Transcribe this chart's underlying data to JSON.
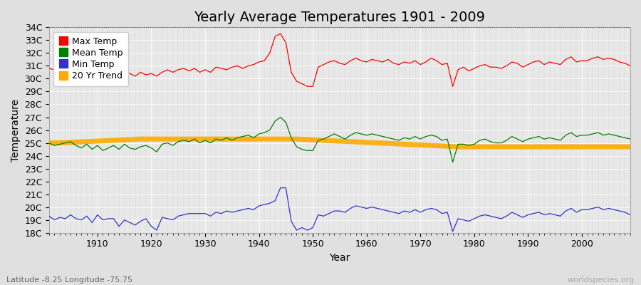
{
  "title": "Yearly Average Temperatures 1901 - 2009",
  "xlabel": "Year",
  "ylabel": "Temperature",
  "subtitle_left": "Latitude -8.25 Longitude -75.75",
  "subtitle_right": "worldspecies.org",
  "years": [
    1901,
    1902,
    1903,
    1904,
    1905,
    1906,
    1907,
    1908,
    1909,
    1910,
    1911,
    1912,
    1913,
    1914,
    1915,
    1916,
    1917,
    1918,
    1919,
    1920,
    1921,
    1922,
    1923,
    1924,
    1925,
    1926,
    1927,
    1928,
    1929,
    1930,
    1931,
    1932,
    1933,
    1934,
    1935,
    1936,
    1937,
    1938,
    1939,
    1940,
    1941,
    1942,
    1943,
    1944,
    1945,
    1946,
    1947,
    1948,
    1949,
    1950,
    1951,
    1952,
    1953,
    1954,
    1955,
    1956,
    1957,
    1958,
    1959,
    1960,
    1961,
    1962,
    1963,
    1964,
    1965,
    1966,
    1967,
    1968,
    1969,
    1970,
    1971,
    1972,
    1973,
    1974,
    1975,
    1976,
    1977,
    1978,
    1979,
    1980,
    1981,
    1982,
    1983,
    1984,
    1985,
    1986,
    1987,
    1988,
    1989,
    1990,
    1991,
    1992,
    1993,
    1994,
    1995,
    1996,
    1997,
    1998,
    1999,
    2000,
    2001,
    2002,
    2003,
    2004,
    2005,
    2006,
    2007,
    2008,
    2009
  ],
  "max_temp": [
    30.8,
    30.7,
    30.6,
    30.7,
    30.5,
    30.4,
    30.3,
    30.6,
    30.4,
    30.1,
    29.9,
    30.2,
    30.3,
    30.5,
    30.6,
    30.4,
    30.2,
    30.5,
    30.3,
    30.4,
    30.2,
    30.5,
    30.7,
    30.5,
    30.7,
    30.8,
    30.6,
    30.8,
    30.5,
    30.7,
    30.5,
    30.9,
    30.8,
    30.7,
    30.9,
    31.0,
    30.8,
    31.0,
    31.1,
    31.3,
    31.4,
    32.0,
    33.3,
    33.5,
    32.8,
    30.5,
    29.8,
    29.6,
    29.4,
    29.4,
    30.9,
    31.1,
    31.3,
    31.4,
    31.2,
    31.1,
    31.4,
    31.6,
    31.4,
    31.3,
    31.5,
    31.4,
    31.3,
    31.5,
    31.2,
    31.1,
    31.3,
    31.2,
    31.4,
    31.1,
    31.3,
    31.6,
    31.4,
    31.1,
    31.2,
    29.4,
    30.7,
    30.9,
    30.6,
    30.8,
    31.0,
    31.1,
    30.9,
    30.9,
    30.8,
    31.0,
    31.3,
    31.2,
    30.9,
    31.1,
    31.3,
    31.4,
    31.1,
    31.3,
    31.2,
    31.1,
    31.5,
    31.7,
    31.3,
    31.4,
    31.4,
    31.6,
    31.7,
    31.5,
    31.6,
    31.5,
    31.3,
    31.2,
    31.0
  ],
  "mean_temp": [
    25.0,
    24.8,
    24.9,
    25.0,
    25.1,
    24.8,
    24.6,
    24.9,
    24.5,
    24.8,
    24.4,
    24.6,
    24.8,
    24.5,
    24.9,
    24.6,
    24.5,
    24.7,
    24.8,
    24.6,
    24.3,
    24.9,
    25.0,
    24.8,
    25.1,
    25.2,
    25.1,
    25.3,
    25.0,
    25.2,
    25.0,
    25.3,
    25.2,
    25.4,
    25.2,
    25.4,
    25.5,
    25.6,
    25.4,
    25.7,
    25.8,
    26.0,
    26.7,
    27.0,
    26.6,
    25.4,
    24.7,
    24.5,
    24.4,
    24.4,
    25.2,
    25.3,
    25.5,
    25.7,
    25.5,
    25.3,
    25.6,
    25.8,
    25.7,
    25.6,
    25.7,
    25.6,
    25.5,
    25.4,
    25.3,
    25.2,
    25.4,
    25.3,
    25.5,
    25.3,
    25.5,
    25.6,
    25.5,
    25.2,
    25.3,
    23.5,
    24.9,
    24.9,
    24.8,
    24.9,
    25.2,
    25.3,
    25.1,
    25.0,
    25.0,
    25.2,
    25.5,
    25.3,
    25.1,
    25.3,
    25.4,
    25.5,
    25.3,
    25.4,
    25.3,
    25.2,
    25.6,
    25.8,
    25.5,
    25.6,
    25.6,
    25.7,
    25.8,
    25.6,
    25.7,
    25.6,
    25.5,
    25.4,
    25.3
  ],
  "min_temp": [
    19.3,
    19.0,
    19.2,
    19.1,
    19.4,
    19.1,
    19.0,
    19.3,
    18.8,
    19.4,
    19.0,
    19.1,
    19.1,
    18.5,
    19.0,
    18.8,
    18.6,
    18.9,
    19.1,
    18.5,
    18.2,
    19.2,
    19.1,
    19.0,
    19.3,
    19.4,
    19.5,
    19.5,
    19.5,
    19.5,
    19.3,
    19.6,
    19.5,
    19.7,
    19.6,
    19.7,
    19.8,
    19.9,
    19.8,
    20.1,
    20.2,
    20.3,
    20.5,
    21.5,
    21.5,
    18.9,
    18.2,
    18.4,
    18.2,
    18.4,
    19.4,
    19.3,
    19.5,
    19.7,
    19.7,
    19.6,
    19.9,
    20.1,
    20.0,
    19.9,
    20.0,
    19.9,
    19.8,
    19.7,
    19.6,
    19.5,
    19.7,
    19.6,
    19.8,
    19.6,
    19.8,
    19.9,
    19.8,
    19.5,
    19.6,
    18.1,
    19.1,
    19.0,
    18.9,
    19.1,
    19.3,
    19.4,
    19.3,
    19.2,
    19.1,
    19.3,
    19.6,
    19.4,
    19.2,
    19.4,
    19.5,
    19.6,
    19.4,
    19.5,
    19.4,
    19.3,
    19.7,
    19.9,
    19.6,
    19.8,
    19.8,
    19.9,
    20.0,
    19.8,
    19.9,
    19.8,
    19.7,
    19.6,
    19.4
  ],
  "trend": [
    25.0,
    25.0,
    25.0,
    25.02,
    25.04,
    25.06,
    25.08,
    25.1,
    25.12,
    25.14,
    25.16,
    25.18,
    25.2,
    25.22,
    25.24,
    25.26,
    25.28,
    25.3,
    25.3,
    25.3,
    25.3,
    25.3,
    25.3,
    25.3,
    25.3,
    25.3,
    25.3,
    25.3,
    25.3,
    25.3,
    25.3,
    25.3,
    25.3,
    25.3,
    25.3,
    25.3,
    25.3,
    25.3,
    25.3,
    25.3,
    25.3,
    25.3,
    25.3,
    25.3,
    25.3,
    25.3,
    25.3,
    25.28,
    25.26,
    25.24,
    25.22,
    25.2,
    25.18,
    25.16,
    25.14,
    25.12,
    25.1,
    25.08,
    25.06,
    25.04,
    25.02,
    25.0,
    24.98,
    24.96,
    24.94,
    24.92,
    24.9,
    24.88,
    24.86,
    24.84,
    24.82,
    24.8,
    24.78,
    24.76,
    24.74,
    24.72,
    24.7,
    24.7,
    24.7,
    24.7,
    24.7,
    24.7,
    24.7,
    24.7,
    24.7,
    24.7,
    24.7,
    24.7,
    24.7,
    24.7,
    24.7,
    24.7,
    24.7,
    24.7,
    24.7,
    24.7,
    24.7,
    24.7,
    24.7,
    24.7,
    24.7,
    24.7,
    24.7,
    24.7,
    24.7,
    24.7,
    24.7,
    24.7,
    24.7
  ],
  "ylim": [
    18,
    34
  ],
  "yticks": [
    18,
    19,
    20,
    21,
    22,
    23,
    24,
    25,
    26,
    27,
    28,
    29,
    30,
    31,
    32,
    33,
    34
  ],
  "ytick_labels": [
    "18C",
    "19C",
    "20C",
    "21C",
    "22C",
    "23C",
    "24C",
    "25C",
    "26C",
    "27C",
    "28C",
    "29C",
    "30C",
    "31C",
    "32C",
    "33C",
    "34C"
  ],
  "xticks": [
    1910,
    1920,
    1930,
    1940,
    1950,
    1960,
    1970,
    1980,
    1990,
    2000
  ],
  "xlim": [
    1901,
    2009
  ],
  "max_color": "#ff0000",
  "mean_color": "#008000",
  "min_color": "#3333cc",
  "trend_color": "#ffaa00",
  "bg_color": "#e0e0e0",
  "plot_bg": "#e8e8e8",
  "grid_color": "#ffffff",
  "grid_minor_color": "#d0d0d0",
  "title_fontsize": 14,
  "axis_label_fontsize": 10,
  "tick_fontsize": 9,
  "legend_fontsize": 9,
  "dotted_line_y": 34,
  "dotted_line_color": "#555555",
  "legend_square_size": 8
}
